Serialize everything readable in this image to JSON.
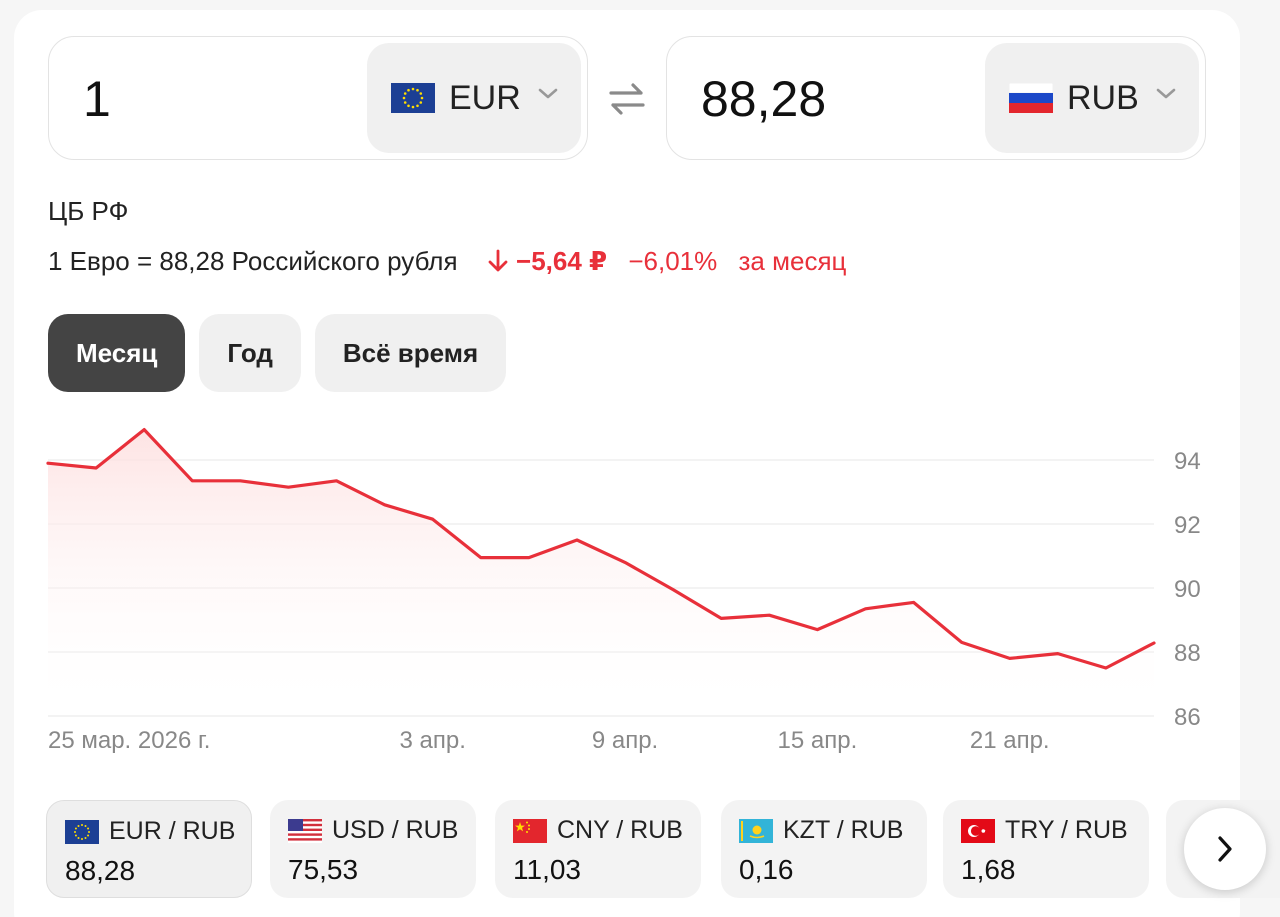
{
  "converter": {
    "from": {
      "amount": "1",
      "currency": "EUR",
      "flag": "eu-flag"
    },
    "to": {
      "amount": "88,28",
      "currency": "RUB",
      "flag": "ru-flag"
    },
    "swap_icon": "swap-arrows-icon"
  },
  "source": "ЦБ РФ",
  "rate": {
    "text": "1 Евро = 88,28 Российского рубля",
    "change_abs": "−5,64 ₽",
    "change_pct": "−6,01%",
    "period": "за месяц",
    "trend_icon": "arrow-down-icon",
    "trend_color": "#e8303a"
  },
  "tabs": [
    {
      "label": "Месяц",
      "active": true
    },
    {
      "label": "Год",
      "active": false
    },
    {
      "label": "Всё время",
      "active": false
    }
  ],
  "chart_data": {
    "type": "area",
    "series": [
      {
        "values": [
          93.9,
          93.75,
          94.95,
          93.35,
          93.35,
          93.15,
          93.35,
          92.6,
          92.15,
          90.95,
          90.95,
          91.5,
          90.8,
          89.95,
          89.05,
          89.15,
          88.7,
          89.35,
          89.55,
          88.3,
          87.8,
          87.95,
          87.5,
          88.28
        ]
      }
    ],
    "x_tick_labels": [
      "25 мар. 2026 г.",
      "3 апр.",
      "9 апр.",
      "15 апр.",
      "21 апр."
    ],
    "x_tick_positions": [
      0,
      8,
      12,
      16,
      20
    ],
    "y_ticks": [
      94,
      92,
      90,
      88,
      86
    ],
    "ylim": [
      86,
      95.5
    ],
    "grid": true,
    "line_color": "#e8303a"
  },
  "pairs": [
    {
      "pair": "EUR / RUB",
      "value": "88,28",
      "flag": "eu-flag",
      "active": true
    },
    {
      "pair": "USD / RUB",
      "value": "75,53",
      "flag": "us-flag",
      "active": false
    },
    {
      "pair": "CNY / RUB",
      "value": "11,03",
      "flag": "cn-flag",
      "active": false
    },
    {
      "pair": "KZT / RUB",
      "value": "0,16",
      "flag": "kz-flag",
      "active": false
    },
    {
      "pair": "TRY / RUB",
      "value": "1,68",
      "flag": "tr-flag",
      "active": false
    }
  ],
  "next_icon": "chevron-right-icon"
}
